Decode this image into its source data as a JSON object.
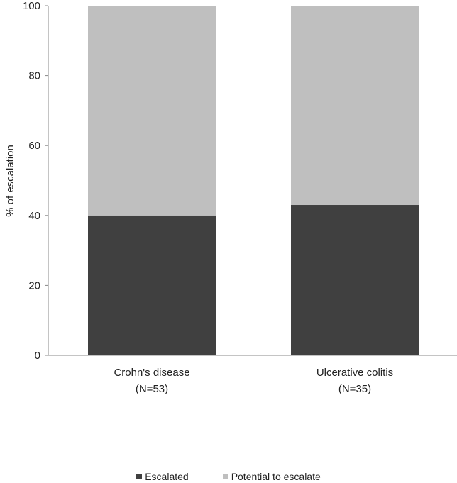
{
  "chart_data": {
    "type": "bar",
    "stacked": true,
    "categories": [
      "Crohn's disease",
      "Ulcerative colitis"
    ],
    "category_sublabels": [
      "(N=53)",
      "(N=35)"
    ],
    "series": [
      {
        "name": "Escalated",
        "values": [
          40,
          43
        ],
        "color": "#404040"
      },
      {
        "name": "Potential to escalate",
        "values": [
          60,
          57
        ],
        "color": "#bfbfbf"
      }
    ],
    "title": "",
    "xlabel": "",
    "ylabel": "% of escalation",
    "ylim": [
      0,
      100
    ],
    "yticks": [
      "0",
      "20",
      "40",
      "60",
      "80",
      "100"
    ],
    "grid": false,
    "legend_position": "bottom"
  }
}
